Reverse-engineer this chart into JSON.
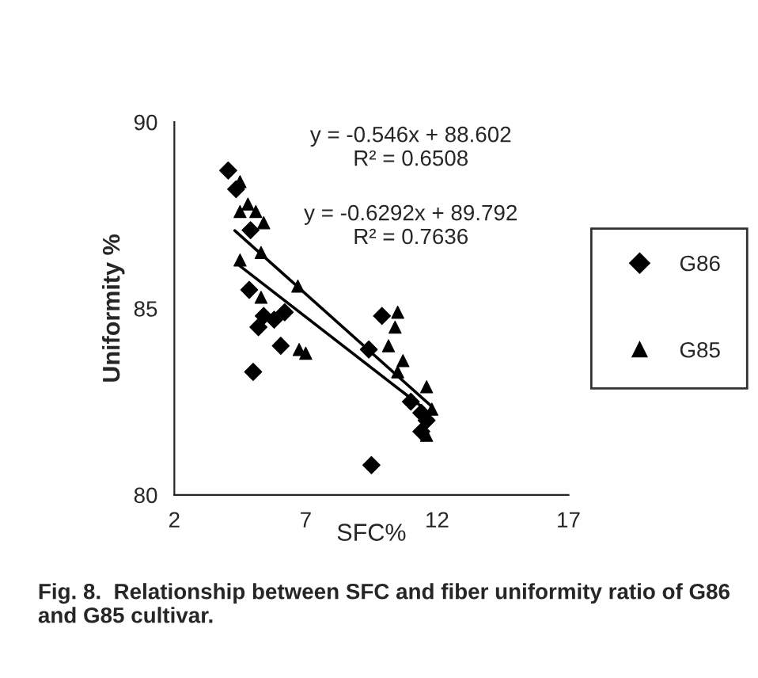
{
  "chart_data": {
    "type": "scatter",
    "xlabel": "SFC%",
    "ylabel": "Uniformity %",
    "xlim": [
      2,
      17
    ],
    "ylim": [
      80,
      90
    ],
    "xticks": [
      2,
      7,
      12,
      17
    ],
    "yticks": [
      80,
      85,
      90
    ],
    "grid": false,
    "legend": "right",
    "series": [
      {
        "name": "G86",
        "color": "#000000",
        "marker": "diamond",
        "x": [
          4.05,
          4.35,
          4.9,
          4.85,
          5.4,
          5.2,
          5.8,
          6.05,
          6.2,
          5.0,
          9.9,
          9.4,
          9.5,
          11.0,
          11.4,
          11.6,
          11.4
        ],
        "values": [
          88.7,
          88.2,
          87.1,
          85.5,
          84.8,
          84.5,
          84.7,
          84.0,
          84.9,
          83.3,
          84.8,
          83.9,
          80.8,
          82.5,
          82.2,
          82.0,
          81.7
        ]
      },
      {
        "name": "G85",
        "color": "#000000",
        "marker": "triangle",
        "x": [
          4.5,
          4.8,
          5.1,
          4.5,
          5.4,
          5.3,
          4.5,
          5.3,
          6.7,
          6.75,
          7.0,
          10.4,
          10.5,
          10.15,
          10.7,
          10.5,
          11.6,
          11.8,
          11.6
        ],
        "values": [
          88.4,
          87.8,
          87.6,
          87.6,
          87.3,
          86.5,
          86.3,
          85.3,
          85.6,
          83.9,
          83.8,
          84.5,
          84.9,
          84.0,
          83.6,
          83.3,
          82.9,
          82.3,
          81.6
        ]
      },
      {
        "type": "line",
        "color": "#000000",
        "marker": "none",
        "x": [
          4.5,
          11.5
        ],
        "values": [
          86.14,
          82.32
        ]
      },
      {
        "type": "line",
        "color": "#000000",
        "marker": "none",
        "x": [
          4.3,
          11.8
        ],
        "values": [
          87.09,
          82.37
        ]
      }
    ],
    "annotations": [
      "y = -0.546x + 88.602\nR² = 0.6508",
      "y = -0.6292x + 89.792\nR² = 0.7636",
      "Fig. 8.  Relationship between SFC and fiber uniformity ratio of G86 and G85 cultivar."
    ]
  }
}
